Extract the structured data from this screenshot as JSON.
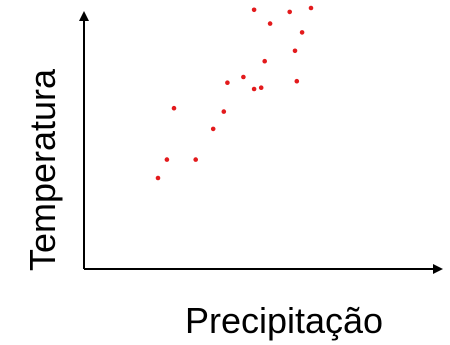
{
  "chart_data": {
    "type": "scatter",
    "xlabel": "Precipitação",
    "ylabel": "Temperatura",
    "axis_color": "#000000",
    "point_color": "#e31a1c",
    "ticks": false,
    "grid": false,
    "xlim": [
      0,
      100
    ],
    "ylim": [
      0,
      100
    ],
    "points": [
      {
        "x": 20.0,
        "y": 34.5
      },
      {
        "x": 22.5,
        "y": 41.6
      },
      {
        "x": 24.5,
        "y": 61.4
      },
      {
        "x": 30.6,
        "y": 41.6
      },
      {
        "x": 35.5,
        "y": 53.4
      },
      {
        "x": 38.5,
        "y": 60.1
      },
      {
        "x": 39.5,
        "y": 71.2
      },
      {
        "x": 44.0,
        "y": 73.4
      },
      {
        "x": 47.0,
        "y": 68.8
      },
      {
        "x": 49.0,
        "y": 69.3
      },
      {
        "x": 50.0,
        "y": 79.5
      },
      {
        "x": 47.0,
        "y": 99.3
      },
      {
        "x": 51.5,
        "y": 94.0
      },
      {
        "x": 57.0,
        "y": 98.5
      },
      {
        "x": 58.5,
        "y": 83.5
      },
      {
        "x": 59.0,
        "y": 71.8
      },
      {
        "x": 60.5,
        "y": 90.6
      },
      {
        "x": 63.0,
        "y": 100.0
      }
    ]
  }
}
